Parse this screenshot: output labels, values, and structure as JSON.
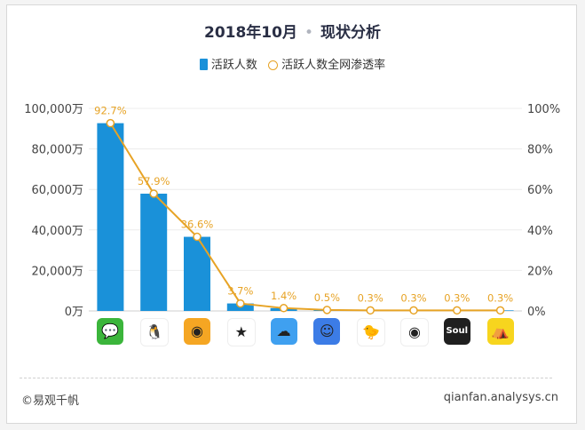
{
  "title": {
    "main": "2018年10月",
    "sub": "现状分析"
  },
  "legend": {
    "bar_label": "活跃人数",
    "line_label": "活跃人数全网渗透率"
  },
  "footer": {
    "source": "©易观千帆",
    "site": "qianfan.analysys.cn"
  },
  "colors": {
    "bar": "#1a91d9",
    "line": "#e7a325",
    "label": "#e7a325"
  },
  "apps": [
    {
      "icon": "wechat-icon",
      "color": "#3bb53b",
      "glyph": "💬"
    },
    {
      "icon": "qq-icon",
      "color": "#ffffff",
      "glyph": "🐧"
    },
    {
      "icon": "weibo-icon",
      "color": "#f5a623",
      "glyph": "◉"
    },
    {
      "icon": "qzone-icon",
      "color": "#ffffff",
      "glyph": "★"
    },
    {
      "icon": "momo-icon",
      "color": "#3fa0f0",
      "glyph": "☁"
    },
    {
      "icon": "tieba-icon",
      "color": "#3c7ce6",
      "glyph": "☺"
    },
    {
      "icon": "qq-mini-icon",
      "color": "#ffffff",
      "glyph": "🐤"
    },
    {
      "icon": "weibo-lite-icon",
      "color": "#ffffff",
      "glyph": "◉"
    },
    {
      "icon": "soul-icon",
      "color": "#1f1f1f",
      "glyph": "Soul"
    },
    {
      "icon": "tent-icon",
      "color": "#f7d51e",
      "glyph": "⛺"
    }
  ],
  "chart_data": {
    "type": "bar",
    "categories": [
      "",
      "",
      "",
      "",
      "",
      "",
      "",
      "",
      "",
      ""
    ],
    "series": [
      {
        "name": "活跃人数",
        "type": "bar",
        "values": [
          92700,
          57900,
          36600,
          3700,
          1400,
          500,
          300,
          300,
          300,
          300
        ]
      },
      {
        "name": "活跃人数全网渗透率",
        "type": "line",
        "values": [
          92.7,
          57.9,
          36.6,
          3.7,
          1.4,
          0.5,
          0.3,
          0.3,
          0.3,
          0.3
        ],
        "labels": [
          "92.7%",
          "57.9%",
          "36.6%",
          "3.7%",
          "1.4%",
          "0.5%",
          "0.3%",
          "0.3%",
          "0.3%",
          "0.3%"
        ]
      }
    ],
    "y_left": {
      "ylim": [
        0,
        100000
      ],
      "ticks": [
        0,
        20000,
        40000,
        60000,
        80000,
        100000
      ],
      "tick_labels": [
        "0万",
        "20,000万",
        "40,000万",
        "60,000万",
        "80,000万",
        "100,000万"
      ]
    },
    "y_right": {
      "ylim": [
        0,
        100
      ],
      "ticks": [
        0,
        20,
        40,
        60,
        80,
        100
      ],
      "tick_labels": [
        "0%",
        "20%",
        "40%",
        "60%",
        "80%",
        "100%"
      ]
    },
    "grid": true,
    "legend_position": "top-center"
  }
}
